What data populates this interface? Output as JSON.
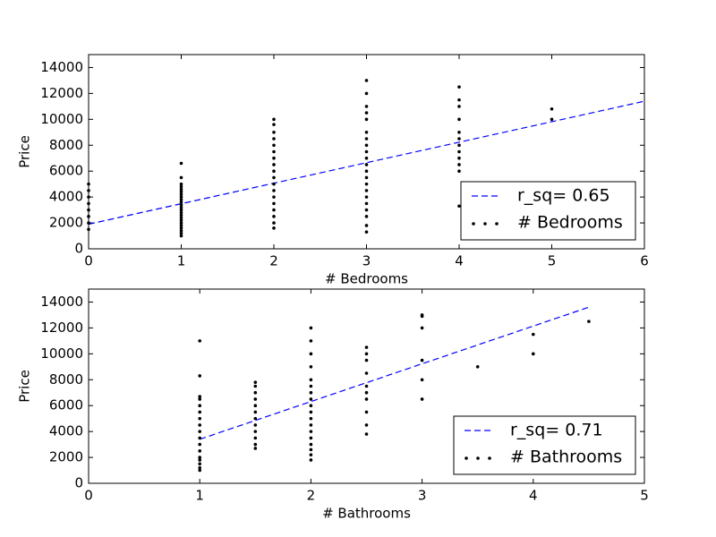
{
  "chart_data": [
    {
      "type": "scatter",
      "xlabel": "# Bedrooms",
      "ylabel": "Price",
      "xlim": [
        0,
        6
      ],
      "ylim": [
        0,
        15000
      ],
      "xticks": [
        0,
        1,
        2,
        3,
        4,
        5,
        6
      ],
      "yticks": [
        0,
        2000,
        4000,
        6000,
        8000,
        10000,
        12000,
        14000
      ],
      "legend": "lower right",
      "series": [
        {
          "name": "r_sq= 0.65",
          "color": "#0000ff",
          "style": "dashed",
          "x": [
            0,
            6
          ],
          "values": [
            1900,
            11400
          ]
        },
        {
          "name": "# Bedrooms",
          "color": "#000000",
          "style": "points",
          "x": [
            0,
            0,
            0,
            0,
            0,
            0,
            0,
            0,
            1,
            1,
            1,
            1,
            1,
            1,
            1,
            1,
            1,
            1,
            1,
            1,
            1,
            1,
            1,
            1,
            1,
            1,
            1,
            1,
            1,
            1,
            1,
            2,
            2,
            2,
            2,
            2,
            2,
            2,
            2,
            2,
            2,
            2,
            2,
            2,
            2,
            2,
            2,
            2,
            2,
            3,
            3,
            3,
            3,
            3,
            3,
            3,
            3,
            3,
            3,
            3,
            3,
            3,
            3,
            3,
            3,
            3,
            3,
            3,
            3,
            3,
            4,
            4,
            4,
            4,
            4,
            4,
            4,
            4,
            4,
            4,
            4,
            4,
            5,
            5
          ],
          "values": [
            1500,
            2000,
            2500,
            3000,
            3500,
            4000,
            4500,
            5000,
            1000,
            1200,
            1400,
            1600,
            1800,
            2000,
            2200,
            2400,
            2600,
            2800,
            3000,
            3200,
            3400,
            3600,
            3800,
            4000,
            4200,
            4400,
            4600,
            4800,
            5000,
            5500,
            6600,
            1600,
            2000,
            2500,
            3000,
            3500,
            4000,
            4500,
            5000,
            5500,
            6000,
            6500,
            7000,
            7500,
            8000,
            8500,
            9000,
            9600,
            10000,
            1300,
            1800,
            2500,
            3000,
            3500,
            4000,
            4500,
            5000,
            5500,
            6000,
            6500,
            7000,
            7500,
            8000,
            8500,
            9000,
            10000,
            10500,
            11000,
            12000,
            13000,
            3300,
            6000,
            6500,
            7000,
            7500,
            8000,
            8500,
            9000,
            10000,
            11000,
            11500,
            12500,
            10000,
            10800
          ]
        }
      ]
    },
    {
      "type": "scatter",
      "xlabel": "# Bathrooms",
      "ylabel": "Price",
      "xlim": [
        0,
        5
      ],
      "ylim": [
        0,
        15000
      ],
      "xticks": [
        0,
        1,
        2,
        3,
        4,
        5
      ],
      "yticks": [
        0,
        2000,
        4000,
        6000,
        8000,
        10000,
        12000,
        14000
      ],
      "legend": "lower right",
      "series": [
        {
          "name": "r_sq= 0.71",
          "color": "#0000ff",
          "style": "dashed",
          "x": [
            1,
            4.5
          ],
          "values": [
            3400,
            13600
          ]
        },
        {
          "name": "# Bathrooms",
          "color": "#000000",
          "style": "points",
          "x": [
            1,
            1,
            1,
            1,
            1,
            1,
            1,
            1,
            1,
            1,
            1,
            1,
            1,
            1,
            1,
            1,
            1,
            1.5,
            1.5,
            1.5,
            1.5,
            1.5,
            1.5,
            1.5,
            1.5,
            1.5,
            1.5,
            1.5,
            1.5,
            2,
            2,
            2,
            2,
            2,
            2,
            2,
            2,
            2,
            2,
            2,
            2,
            2,
            2,
            2,
            2,
            2,
            2,
            2.5,
            2.5,
            2.5,
            2.5,
            2.5,
            2.5,
            2.5,
            2.5,
            2.5,
            2.5,
            3,
            3,
            3,
            3,
            3,
            3,
            3.5,
            4,
            4,
            4.5
          ],
          "values": [
            1000,
            1500,
            2000,
            2500,
            3000,
            3500,
            4000,
            4500,
            5000,
            5500,
            6000,
            6500,
            6700,
            8300,
            11000,
            1200,
            1800,
            2700,
            3000,
            3500,
            4000,
            4500,
            5000,
            5500,
            6000,
            6500,
            7000,
            7500,
            7800,
            1800,
            2200,
            2600,
            3000,
            3500,
            4000,
            4500,
            5000,
            5500,
            6000,
            6500,
            7000,
            7500,
            8000,
            9000,
            10000,
            11000,
            12000,
            3800,
            4500,
            5500,
            6500,
            7000,
            7500,
            8500,
            9500,
            10000,
            10500,
            6500,
            8000,
            9500,
            12000,
            12900,
            13000,
            9000,
            10000,
            11500,
            12500
          ]
        }
      ]
    }
  ]
}
